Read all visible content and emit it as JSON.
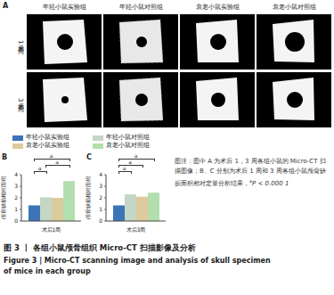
{
  "panel_labels": [
    "A",
    "B",
    "C"
  ],
  "panel_a": {
    "columns": [
      "年轻小鼠实验组",
      "年轻小鼠对照组",
      "衰老小鼠实验组",
      "衰老小鼠对照组"
    ],
    "rows": [
      "术后1周",
      "术后3周"
    ]
  },
  "chart_data": [
    {
      "type": "bar",
      "categories": [
        "术后1周"
      ],
      "y_label": "颅骨缺损相对面积",
      "ylim": [
        0,
        4
      ],
      "yticks": [
        0,
        1,
        2,
        3,
        4
      ],
      "grid": false,
      "series": [
        {
          "name": "年轻小鼠实验组",
          "color": "#3d74b6",
          "values": [
            1.35
          ]
        },
        {
          "name": "年轻小鼠对照组",
          "color": "#c4d6c4",
          "values": [
            2.05
          ]
        },
        {
          "name": "衰老小鼠实验组",
          "color": "#dccb9c",
          "values": [
            2.0
          ]
        },
        {
          "name": "衰老小鼠对照组",
          "color": "#b3dfae",
          "values": [
            3.45
          ]
        }
      ],
      "annotations": [
        {
          "between": [
            "年轻小鼠实验组",
            "衰老小鼠对照组"
          ],
          "label": "a"
        },
        {
          "between": [
            "年轻小鼠对照组",
            "衰老小鼠对照组"
          ],
          "label": "a"
        },
        {
          "between": [
            "年轻小鼠实验组",
            "年轻小鼠对照组"
          ],
          "label": "a"
        }
      ]
    },
    {
      "type": "bar",
      "categories": [
        "术后3周"
      ],
      "y_label": "颅骨缺损相对面积",
      "ylim": [
        0,
        4
      ],
      "yticks": [
        0,
        1,
        2,
        3,
        4
      ],
      "grid": false,
      "series": [
        {
          "name": "年轻小鼠实验组",
          "color": "#3d74b6",
          "values": [
            1.35
          ]
        },
        {
          "name": "年轻小鼠对照组",
          "color": "#c4d6c4",
          "values": [
            2.3
          ]
        },
        {
          "name": "衰老小鼠实验组",
          "color": "#dccb9c",
          "values": [
            2.1
          ]
        },
        {
          "name": "衰老小鼠对照组",
          "color": "#b3dfae",
          "values": [
            2.45
          ]
        }
      ],
      "annotations": [
        {
          "between": [
            "年轻小鼠实验组",
            "衰老小鼠对照组"
          ],
          "label": "a"
        },
        {
          "between": [
            "年轻小鼠实验组",
            "衰老小鼠实验组"
          ],
          "label": "a"
        },
        {
          "between": [
            "年轻小鼠实验组",
            "年轻小鼠对照组"
          ],
          "label": "a"
        }
      ]
    }
  ],
  "caption": "图注：图中 A 为术后 1，3 周各组小鼠的 Micro-CT 扫描图像；B、C 分别为术后 1 周和 3 周各组小鼠颅骨缺损面积相对定量分析结果，",
  "caption_note": {
    "marker": "a",
    "text": "P < 0.000 1"
  },
  "figure_title": "图 3 丨 各组小鼠颅骨组织 Micro-CT 扫描影像及分析",
  "figure_title_en": "Figure 3 | Micro-CT scanning image and analysis of skull specimen of mice in each group"
}
